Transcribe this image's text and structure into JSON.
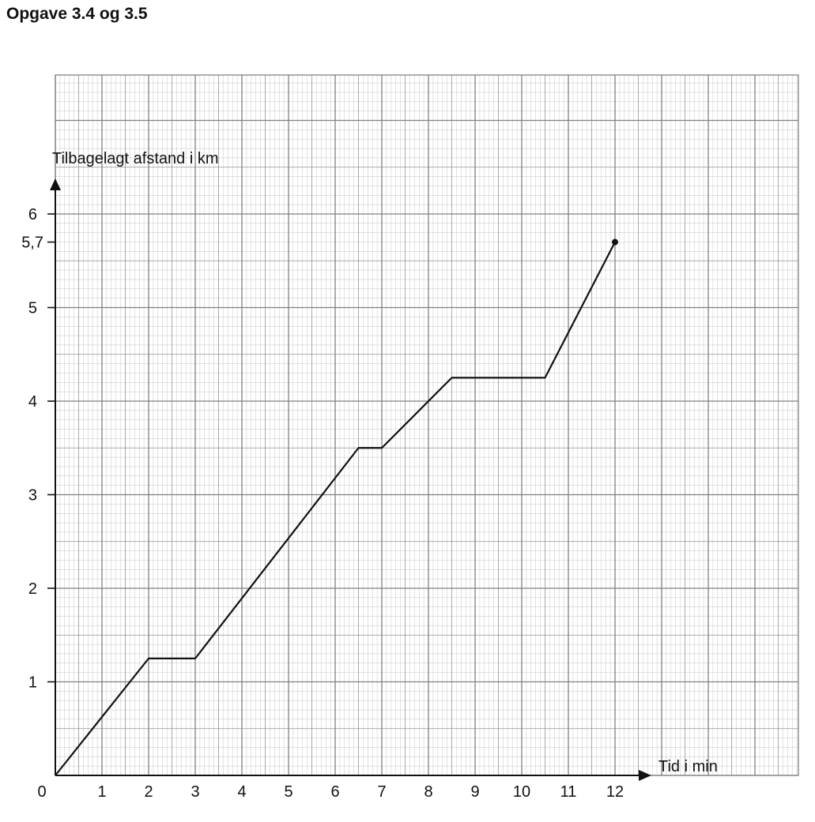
{
  "header": {
    "title": "Opgave 3.4 og 3.5"
  },
  "chart_data": {
    "type": "line",
    "title": "Opgave 3.4 og 3.5",
    "xlabel": "Tid i min",
    "ylabel": "Tilbagelagt afstand i km",
    "xlim": [
      0,
      15.5
    ],
    "ylim": [
      0,
      7.5
    ],
    "x_ticks": [
      "0",
      "1",
      "2",
      "3",
      "4",
      "5",
      "6",
      "7",
      "8",
      "9",
      "10",
      "11",
      "12"
    ],
    "y_ticks": [
      "1",
      "2",
      "3",
      "4",
      "5",
      "6"
    ],
    "y_tick_values": [
      1,
      2,
      3,
      4,
      5,
      6
    ],
    "special_y_tick": {
      "label": "5,7",
      "value": 5.7
    },
    "grid": true,
    "series": [
      {
        "x": [
          0,
          2,
          3,
          6.5,
          7,
          8.5,
          10.5,
          12
        ],
        "y": [
          0,
          1.25,
          1.25,
          3.5,
          3.5,
          4.25,
          4.25,
          5.7
        ]
      }
    ],
    "end_marker": {
      "x": 12,
      "y": 5.7
    },
    "colors": {
      "line": "#111111",
      "grid": "#7a7a7a",
      "axis": "#111111"
    }
  }
}
